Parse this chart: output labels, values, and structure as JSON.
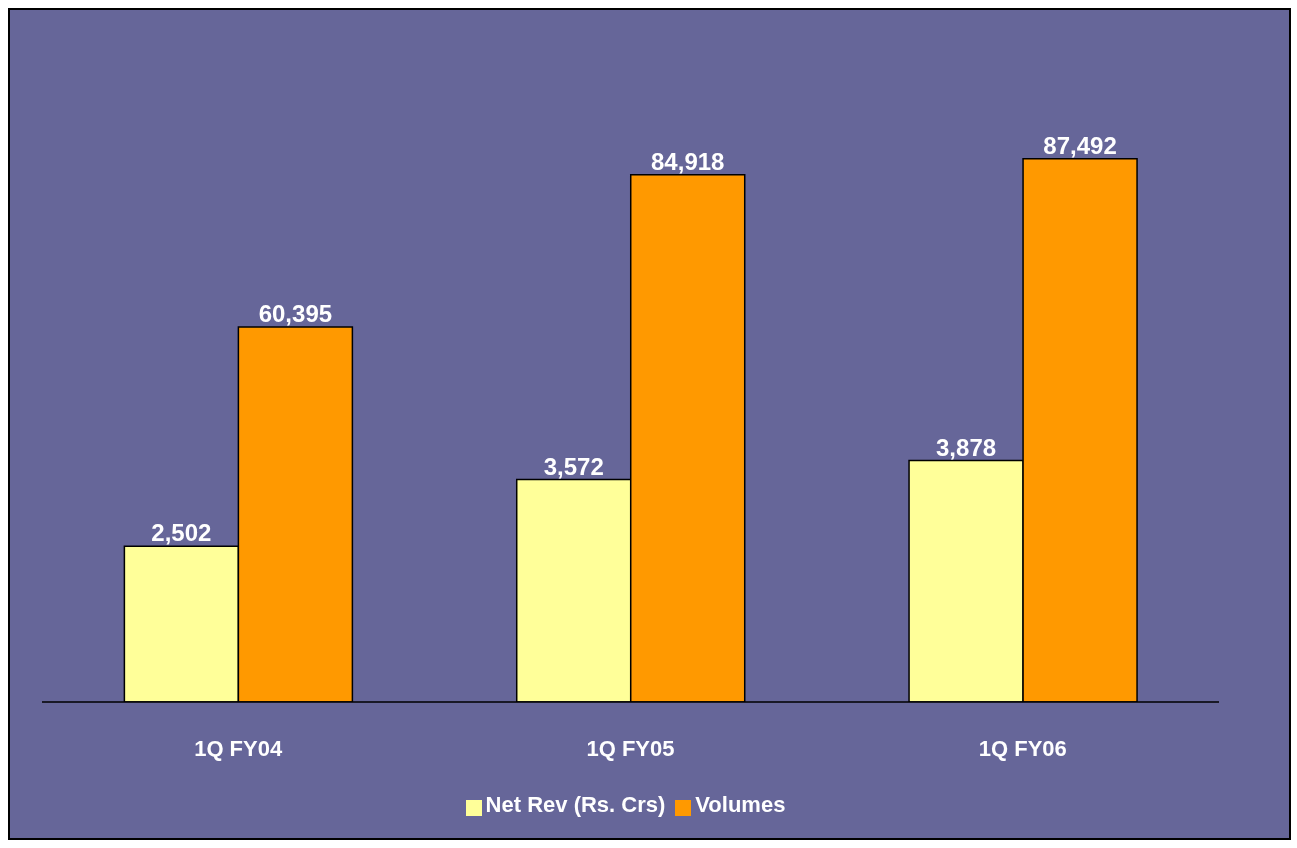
{
  "chart_data": {
    "type": "bar",
    "categories": [
      "1Q FY04",
      "1Q FY05",
      "1Q FY06"
    ],
    "series": [
      {
        "name": "Net Rev (Rs. Crs)",
        "color": "#ffff99",
        "values": [
          2502,
          3572,
          3878
        ],
        "value_labels": [
          "2,502",
          "3,572",
          "3,878"
        ],
        "axis": "y2"
      },
      {
        "name": "Volumes",
        "color": "#ff9900",
        "values": [
          60395,
          84918,
          87492
        ],
        "value_labels": [
          "60,395",
          "84,918",
          "87,492"
        ]
      }
    ],
    "grid": false,
    "legend": "bottom"
  }
}
